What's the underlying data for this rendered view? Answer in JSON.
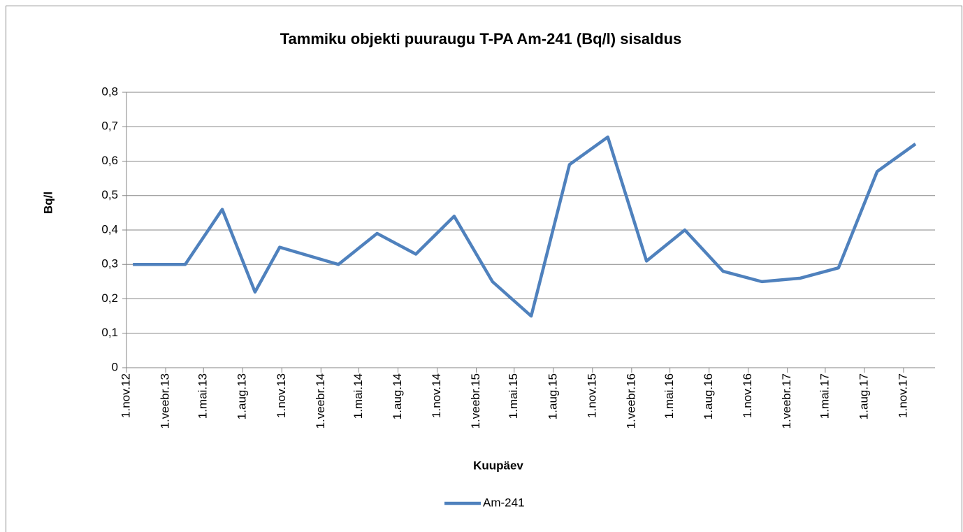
{
  "chart_data": {
    "type": "line",
    "title": "Tammiku objekti puuraugu T-PA Am-241 (Bq/l) sisaldus",
    "x_label": "Kuupäev",
    "y_label": "Bq/l",
    "x": [
      "2012-11-16",
      "2013-03-19",
      "2013-06-14",
      "2013-08-30",
      "2013-10-27",
      "2014-03-14",
      "2014-06-13",
      "2014-09-12",
      "2014-12-11",
      "2015-03-11",
      "2015-06-10",
      "2015-09-08",
      "2015-12-07",
      "2016-03-07",
      "2016-06-05",
      "2016-09-03",
      "2016-12-03",
      "2017-03-03",
      "2017-06-01",
      "2017-08-31",
      "2017-11-29"
    ],
    "series": [
      {
        "name": "Am-241",
        "color": "#4f81bd",
        "values": [
          0.3,
          0.3,
          0.46,
          0.22,
          0.35,
          0.3,
          0.39,
          0.33,
          0.44,
          0.25,
          0.15,
          0.59,
          0.67,
          0.31,
          0.4,
          0.28,
          0.25,
          0.26,
          0.29,
          0.57,
          0.65
        ]
      }
    ],
    "xlim": [
      "2012-11-01",
      "2018-01-14"
    ],
    "xticks": [
      {
        "value": "2012-11-01",
        "label": "1.nov.12"
      },
      {
        "value": "2013-02-01",
        "label": "1.veebr.13"
      },
      {
        "value": "2013-05-01",
        "label": "1.mai.13"
      },
      {
        "value": "2013-08-01",
        "label": "1.aug.13"
      },
      {
        "value": "2013-11-01",
        "label": "1.nov.13"
      },
      {
        "value": "2014-02-01",
        "label": "1.veebr.14"
      },
      {
        "value": "2014-05-01",
        "label": "1.mai.14"
      },
      {
        "value": "2014-08-01",
        "label": "1.aug.14"
      },
      {
        "value": "2014-11-01",
        "label": "1.nov.14"
      },
      {
        "value": "2015-02-01",
        "label": "1.veebr.15"
      },
      {
        "value": "2015-05-01",
        "label": "1.mai.15"
      },
      {
        "value": "2015-08-01",
        "label": "1.aug.15"
      },
      {
        "value": "2015-11-01",
        "label": "1.nov.15"
      },
      {
        "value": "2016-02-01",
        "label": "1.veebr.16"
      },
      {
        "value": "2016-05-01",
        "label": "1.mai.16"
      },
      {
        "value": "2016-08-01",
        "label": "1.aug.16"
      },
      {
        "value": "2016-11-01",
        "label": "1.nov.16"
      },
      {
        "value": "2017-02-01",
        "label": "1.veebr.17"
      },
      {
        "value": "2017-05-01",
        "label": "1.mai.17"
      },
      {
        "value": "2017-08-01",
        "label": "1.aug.17"
      },
      {
        "value": "2017-11-01",
        "label": "1.nov.17"
      }
    ],
    "ylim": [
      0,
      0.8
    ],
    "yticks": [
      0,
      {
        "value": 0.1,
        "label": "0,1"
      },
      {
        "value": 0.2,
        "label": "0,2"
      },
      {
        "value": 0.3,
        "label": "0,3"
      },
      {
        "value": 0.4,
        "label": "0,4"
      },
      {
        "value": 0.5,
        "label": "0,5"
      },
      {
        "value": 0.6,
        "label": "0,6"
      },
      {
        "value": 0.7,
        "label": "0,7"
      },
      {
        "value": 0.8,
        "label": "0,8"
      }
    ],
    "grid": true,
    "legend": "bottom"
  }
}
